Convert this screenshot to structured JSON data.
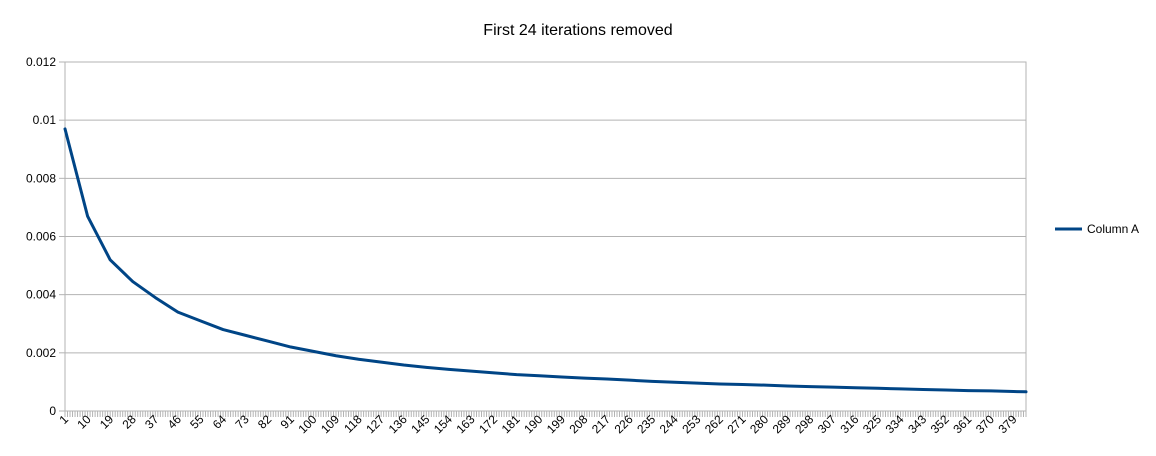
{
  "chart_data": {
    "type": "line",
    "title": "First 24 iterations removed",
    "xlabel": "",
    "ylabel": "",
    "x_range": [
      1,
      384
    ],
    "x_tick_labels": [
      "1",
      "10",
      "19",
      "28",
      "37",
      "46",
      "55",
      "64",
      "73",
      "82",
      "91",
      "100",
      "109",
      "118",
      "127",
      "136",
      "145",
      "154",
      "163",
      "172",
      "181",
      "190",
      "199",
      "208",
      "217",
      "226",
      "235",
      "244",
      "253",
      "262",
      "271",
      "280",
      "289",
      "298",
      "307",
      "316",
      "325",
      "334",
      "343",
      "352",
      "361",
      "370",
      "379"
    ],
    "y_tick_labels": [
      "0",
      "0.002",
      "0.004",
      "0.006",
      "0.008",
      "0.01",
      "0.012"
    ],
    "ylim": [
      0,
      0.012
    ],
    "grid": true,
    "legend_position": "right",
    "series": [
      {
        "name": "Column A",
        "color": "#004586",
        "x": [
          1,
          10,
          19,
          28,
          37,
          46,
          55,
          64,
          73,
          82,
          91,
          100,
          109,
          118,
          127,
          136,
          145,
          154,
          163,
          172,
          181,
          190,
          199,
          208,
          217,
          226,
          235,
          244,
          253,
          262,
          271,
          280,
          289,
          298,
          307,
          316,
          325,
          334,
          343,
          352,
          361,
          370,
          379,
          384
        ],
        "values": [
          0.0097,
          0.0067,
          0.0052,
          0.00445,
          0.0039,
          0.0034,
          0.0031,
          0.0028,
          0.0026,
          0.0024,
          0.0022,
          0.00205,
          0.0019,
          0.00178,
          0.00168,
          0.00158,
          0.0015,
          0.00143,
          0.00137,
          0.00131,
          0.00125,
          0.00121,
          0.00117,
          0.00113,
          0.0011,
          0.00106,
          0.00102,
          0.00099,
          0.00096,
          0.00093,
          0.00091,
          0.00089,
          0.00086,
          0.00084,
          0.00082,
          0.0008,
          0.00078,
          0.00076,
          0.00074,
          0.00072,
          0.0007,
          0.00069,
          0.00067,
          0.00066
        ]
      }
    ]
  }
}
